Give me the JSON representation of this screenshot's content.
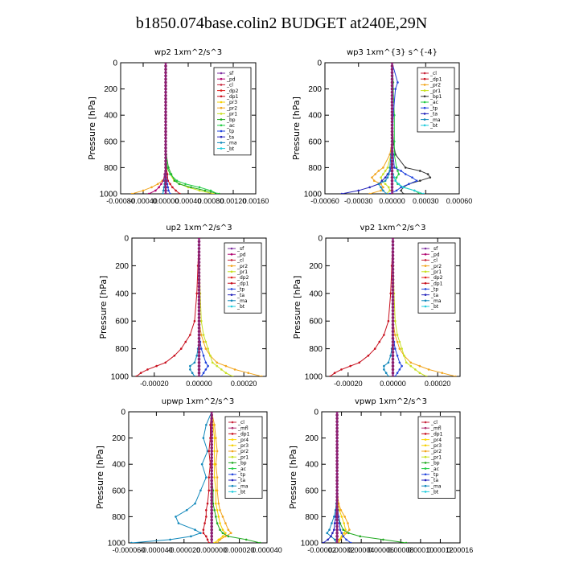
{
  "title": "b1850.074base.colin2  BUDGET at240E,29N",
  "ylabel": "Pressure [hPa]",
  "yticks": [
    0,
    200,
    400,
    600,
    800,
    1000
  ],
  "ylim": [
    1000,
    0
  ],
  "colors": {
    "_sf": "#7e2fa0",
    "_pd": "#b0006e",
    "_cl": "#c8263c",
    "_dp2": "#e0201e",
    "_dp1": "#c8101e",
    "_pr2": "#f2a51c",
    "_pr3": "#f5d000",
    "_pr4": "#ffd700",
    "_pr1": "#c8e020",
    "_bp": "#22aa22",
    "_ac": "#22cc44",
    "_tp": "#2244dd",
    "_ta": "#2222bb",
    "_ma": "#1188bb",
    "_bt": "#22ccdd",
    "_mfl": "#b03070"
  },
  "chart_data": [
    {
      "type": "line",
      "panel": "wp2",
      "title": "wp2  1xm^2/s^3",
      "xlim": [
        -0.0008,
        0.0016
      ],
      "xticks": [
        "-0.00080",
        "-0.00040",
        "0.00000",
        "0.00040",
        "0.00080",
        "0.00120",
        "0.00160"
      ],
      "legend": [
        "_sf",
        "_pd",
        "_cl",
        "_dp2",
        "_dp1",
        "_pr3",
        "_pr2",
        "_pr1",
        "_bp",
        "_ac",
        "_tp",
        "_ta",
        "_ma",
        "_bt"
      ],
      "levels": [
        0,
        200,
        400,
        600,
        700,
        800,
        850,
        900,
        925,
        950,
        975,
        1000
      ],
      "series": [
        {
          "name": "_pr2",
          "values": [
            0,
            0,
            0,
            0,
            0,
            1e-05,
            3e-05,
            -6e-05,
            -0.00014,
            -0.00025,
            -0.0004,
            -0.0006
          ]
        },
        {
          "name": "_pr1",
          "values": [
            0,
            0,
            0,
            0,
            0,
            2e-05,
            8e-05,
            0.00015,
            0.00025,
            0.0004,
            0.0006,
            0.00085
          ]
        },
        {
          "name": "_bp",
          "values": [
            0,
            0,
            0,
            0,
            1e-05,
            5e-05,
            0.0001,
            0.00016,
            0.00024,
            0.00045,
            0.0007,
            0.00095
          ]
        },
        {
          "name": "_ac",
          "values": [
            0,
            0,
            0,
            0,
            0,
            3e-05,
            8e-05,
            0.0002,
            0.00035,
            0.0006,
            0.0008,
            0.00092
          ]
        },
        {
          "name": "_pd",
          "values": [
            0,
            0,
            0,
            0,
            0,
            0,
            -2e-05,
            -4e-05,
            -8e-05,
            -0.00012,
            -0.00018,
            -0.0003
          ]
        },
        {
          "name": "_dp1",
          "values": [
            0,
            0,
            0,
            0,
            0,
            1e-05,
            3e-05,
            4e-05,
            8e-05,
            0.00012,
            0.00018,
            0.00025
          ]
        },
        {
          "name": "_tp",
          "values": [
            0,
            0,
            0,
            0,
            0,
            0,
            1e-05,
            2e-05,
            3e-05,
            4e-05,
            5e-05,
            8e-05
          ]
        },
        {
          "name": "_ma",
          "values": [
            0,
            0,
            0,
            0,
            0,
            0,
            -1e-05,
            -2e-05,
            -2e-05,
            -3e-05,
            -4e-05,
            -5e-05
          ]
        },
        {
          "name": "_sf",
          "values": [
            0,
            0,
            0,
            0,
            0,
            0,
            0,
            0,
            0,
            0,
            0,
            0
          ]
        }
      ]
    },
    {
      "type": "line",
      "panel": "wp3",
      "title": "wp3  1xm^{3} s^{-4}",
      "xlim": [
        -0.0006,
        0.0006
      ],
      "xticks": [
        "-0.00060",
        "-0.00030",
        "0.00000",
        "0.00030",
        "0.00060"
      ],
      "legend": [
        "_cl",
        "_dp1",
        "_pr2",
        "_pr1",
        "_bp1",
        "_ac",
        "_tp",
        "_ta",
        "_ma",
        "_bt"
      ],
      "levels": [
        0,
        150,
        200,
        400,
        600,
        700,
        800,
        825,
        850,
        875,
        900,
        925,
        950,
        975,
        1000
      ],
      "series": [
        {
          "name": "_pr2",
          "values": [
            0,
            0,
            0,
            0,
            0,
            -2e-05,
            -8e-05,
            -0.00012,
            -0.00015,
            -0.00018,
            -0.00016,
            -0.0001,
            -8e-05,
            -0.0001,
            -0.0002
          ]
        },
        {
          "name": "_pr1",
          "values": [
            0,
            0,
            0,
            0,
            0,
            -1e-05,
            -4e-05,
            -6e-05,
            -8e-05,
            -0.0001,
            -9e-05,
            -6e-05,
            -3e-05,
            -2e-05,
            -5e-05
          ]
        },
        {
          "name": "_bp1",
          "values": [
            0,
            0,
            0,
            0,
            1e-05,
            3e-05,
            0.00012,
            0.00025,
            0.00032,
            0.00034,
            0.00025,
            0.00015,
            0.0001,
            8e-05,
            0.0001
          ]
        },
        {
          "name": "_ac",
          "values": [
            0,
            1e-05,
            1e-05,
            2e-05,
            2e-05,
            2e-05,
            4e-05,
            5e-05,
            6e-05,
            4e-05,
            3e-05,
            5e-05,
            0.0001,
            0.0002,
            0.00025
          ]
        },
        {
          "name": "_tp",
          "values": [
            0,
            5e-05,
            3e-05,
            1e-05,
            0,
            1e-05,
            2e-05,
            8e-05,
            0.00012,
            0.00018,
            0.00022,
            0.00015,
            8e-05,
            4e-05,
            -2e-05
          ]
        },
        {
          "name": "_ta",
          "values": [
            0,
            0,
            0,
            0,
            0,
            0,
            -1e-05,
            -2e-05,
            -4e-05,
            -6e-05,
            -9e-05,
            -0.00012,
            -0.0002,
            -0.0003,
            -0.00045
          ]
        },
        {
          "name": "_ma",
          "values": [
            0,
            0,
            0,
            0,
            0,
            -1e-05,
            -2e-05,
            -2e-05,
            -3e-05,
            -4e-05,
            -6e-05,
            -0.00012,
            -0.0001,
            -8e-05,
            -5e-05
          ]
        },
        {
          "name": "_bt",
          "values": [
            0,
            0,
            0,
            0,
            0,
            0,
            0,
            0,
            1e-05,
            2e-05,
            3e-05,
            6e-05,
            0.0001,
            0.0002,
            0.00028
          ]
        },
        {
          "name": "_cl",
          "values": [
            0,
            0,
            0,
            0,
            0,
            0,
            0,
            0,
            0,
            0,
            0,
            0,
            0,
            0,
            0
          ]
        }
      ]
    },
    {
      "type": "line",
      "panel": "up2",
      "title": "up2  1xm^2/s^3",
      "xlim": [
        -0.0003,
        0.0003
      ],
      "xticks": [
        "-0.00020",
        "0.00000",
        "0.00020"
      ],
      "xtick_values": [
        -0.0002,
        0,
        0.0002
      ],
      "legend": [
        "_sf",
        "_pd",
        "_cl",
        "_pr2",
        "_pr1",
        "_dp2",
        "_dp1",
        "_tp",
        "_ta",
        "_ma",
        "_bt"
      ],
      "levels": [
        0,
        200,
        400,
        600,
        700,
        750,
        800,
        850,
        900,
        925,
        950,
        975,
        1000
      ],
      "series": [
        {
          "name": "_pr2",
          "values": [
            0,
            0,
            0,
            0,
            1e-05,
            2e-05,
            3e-05,
            5e-05,
            8e-05,
            0.00012,
            0.00016,
            0.00022,
            0.00028
          ]
        },
        {
          "name": "_pr1",
          "values": [
            0,
            2e-06,
            5e-06,
            1e-05,
            2e-05,
            3e-05,
            4e-05,
            5e-05,
            6e-05,
            8e-05,
            0.0001,
            0.00012,
            0.00015
          ]
        },
        {
          "name": "_dp1",
          "values": [
            0,
            -5e-06,
            -1e-05,
            -2e-05,
            -4e-05,
            -6e-05,
            -8e-05,
            -0.00011,
            -0.00015,
            -0.00019,
            -0.00023,
            -0.00026,
            -0.00028
          ]
        },
        {
          "name": "_tp",
          "values": [
            0,
            0,
            0,
            0,
            0,
            5e-06,
            1e-05,
            2e-05,
            3e-05,
            4e-05,
            3e-05,
            2e-05,
            1e-05
          ]
        },
        {
          "name": "_ma",
          "values": [
            0,
            0,
            0,
            0,
            0,
            0,
            -5e-06,
            -1e-05,
            -2e-05,
            -4e-05,
            -4e-05,
            -3e-05,
            -2e-05
          ]
        },
        {
          "name": "_sf",
          "values": [
            0,
            0,
            0,
            0,
            0,
            0,
            0,
            0,
            0,
            0,
            0,
            0,
            0
          ]
        }
      ]
    },
    {
      "type": "line",
      "panel": "vp2",
      "title": "vp2  1xm^2/s^3",
      "xlim": [
        -0.0003,
        0.0003
      ],
      "xticks": [
        "-0.00020",
        "0.00000",
        "0.00020"
      ],
      "xtick_values": [
        -0.0002,
        0,
        0.0002
      ],
      "legend": [
        "_sf",
        "_pd",
        "_cl",
        "_pr2",
        "_pr1",
        "_dp2",
        "_dp1",
        "_tp",
        "_ta",
        "_ma",
        "_bt"
      ],
      "levels": [
        0,
        200,
        400,
        600,
        700,
        750,
        800,
        850,
        900,
        925,
        950,
        975,
        1000
      ],
      "series": [
        {
          "name": "_pr2",
          "values": [
            0,
            0,
            0,
            0,
            1e-05,
            2e-05,
            3e-05,
            5e-05,
            8e-05,
            0.00012,
            0.00016,
            0.00022,
            0.00028
          ]
        },
        {
          "name": "_pr1",
          "values": [
            0,
            2e-06,
            5e-06,
            1e-05,
            2e-05,
            3e-05,
            4e-05,
            5e-05,
            6e-05,
            8e-05,
            0.0001,
            0.00012,
            0.00015
          ]
        },
        {
          "name": "_dp1",
          "values": [
            0,
            -5e-06,
            -1e-05,
            -2e-05,
            -4e-05,
            -6e-05,
            -8e-05,
            -0.00011,
            -0.00015,
            -0.00019,
            -0.00023,
            -0.00026,
            -0.00028
          ]
        },
        {
          "name": "_tp",
          "values": [
            0,
            0,
            0,
            0,
            0,
            5e-06,
            1e-05,
            2e-05,
            3e-05,
            4e-05,
            3e-05,
            2e-05,
            1e-05
          ]
        },
        {
          "name": "_ma",
          "values": [
            0,
            0,
            0,
            0,
            0,
            0,
            -5e-06,
            -1e-05,
            -2e-05,
            -4e-05,
            -4e-05,
            -3e-05,
            -2e-05
          ]
        },
        {
          "name": "_sf",
          "values": [
            0,
            0,
            0,
            0,
            0,
            0,
            0,
            0,
            0,
            0,
            0,
            0,
            0
          ]
        }
      ]
    },
    {
      "type": "line",
      "panel": "upwp",
      "title": "upwp  1xm^2/s^3",
      "xlim": [
        -6e-05,
        4e-05
      ],
      "xticks": [
        "-0.000060",
        "-0.000040",
        "-0.000020",
        "0.000000",
        "0.000020",
        "0.000040"
      ],
      "legend": [
        "_cl",
        "_mfl",
        "_dp1",
        "_pr4",
        "_pr3",
        "_pr2",
        "_pr1",
        "_bp",
        "_ac",
        "_tp",
        "_ta",
        "_ma",
        "_bt"
      ],
      "levels": [
        0,
        100,
        200,
        300,
        400,
        500,
        600,
        700,
        750,
        800,
        850,
        900,
        925,
        950,
        975,
        1000
      ],
      "series": [
        {
          "name": "_ma",
          "values": [
            0,
            -4e-06,
            -6e-06,
            -3e-06,
            -7e-06,
            -4e-06,
            -8e-06,
            -1.2e-05,
            -1.8e-05,
            -2.6e-05,
            -2.4e-05,
            -1.2e-05,
            -8e-06,
            -1.5e-05,
            -3e-05,
            -5.8e-05
          ]
        },
        {
          "name": "_pr2",
          "values": [
            0,
            2e-06,
            3e-06,
            4e-06,
            3e-06,
            4e-06,
            4e-06,
            5e-06,
            6e-06,
            8e-06,
            1e-05,
            1.2e-05,
            1.4e-05,
            1e-05,
            6e-06,
            4e-06
          ]
        },
        {
          "name": "_pr3",
          "values": [
            0,
            1e-06,
            2e-06,
            2e-06,
            2e-06,
            2e-06,
            3e-06,
            3e-06,
            4e-06,
            5e-06,
            6e-06,
            8e-06,
            1e-05,
            8e-06,
            5e-06,
            2e-06
          ]
        },
        {
          "name": "_dp1",
          "values": [
            0,
            -1e-06,
            -1e-06,
            -2e-06,
            -1e-06,
            -2e-06,
            -2e-06,
            -3e-06,
            -4e-06,
            -4e-06,
            -5e-06,
            -6e-06,
            -6e-06,
            -4e-06,
            -3e-06,
            -2e-06
          ]
        },
        {
          "name": "_bp",
          "values": [
            0,
            0,
            0,
            0,
            0,
            0,
            1e-06,
            1e-06,
            2e-06,
            3e-06,
            4e-06,
            6e-06,
            8e-06,
            1.2e-05,
            2.5e-05,
            3.5e-05
          ]
        },
        {
          "name": "_cl",
          "values": [
            0,
            0,
            0,
            0,
            0,
            0,
            0,
            0,
            0,
            0,
            0,
            0,
            0,
            0,
            0,
            0
          ]
        }
      ]
    },
    {
      "type": "line",
      "panel": "vpwp",
      "title": "vpwp  1xm^2/s^3",
      "xlim": [
        -2e-05,
        0.00016
      ],
      "xticks": [
        "-0.00002",
        "0.00002",
        "0.00004",
        "0.00006",
        "0.00008",
        "0.00010",
        "0.00012",
        "0.00016"
      ],
      "legend": [
        "_cl",
        "_mfl",
        "_dp1",
        "_pr4",
        "_pr3",
        "_pr2",
        "_pr1",
        "_bp",
        "_ac",
        "_tp",
        "_ta",
        "_ma",
        "_bt"
      ],
      "levels": [
        0,
        200,
        400,
        600,
        700,
        750,
        800,
        850,
        900,
        925,
        950,
        975,
        1000
      ],
      "series": [
        {
          "name": "_pr2",
          "values": [
            0,
            0,
            0,
            0,
            2e-06,
            5e-06,
            1e-05,
            1.4e-05,
            1.6e-05,
            1.2e-05,
            8e-06,
            4e-06,
            2e-06
          ]
        },
        {
          "name": "_pr3",
          "values": [
            0,
            0,
            0,
            0,
            1e-06,
            3e-06,
            6e-06,
            9e-06,
            1.1e-05,
            9e-06,
            6e-06,
            3e-06,
            1e-06
          ]
        },
        {
          "name": "_ma",
          "values": [
            0,
            0,
            0,
            0,
            -1e-06,
            -2e-06,
            -4e-06,
            -7e-06,
            -1e-05,
            -1.3e-05,
            -8e-06,
            -3e-06,
            -1e-06
          ]
        },
        {
          "name": "_bp",
          "values": [
            0,
            0,
            0,
            0,
            0,
            1e-06,
            2e-06,
            4e-06,
            8e-06,
            1.5e-05,
            3e-05,
            6e-05,
            9e-05
          ]
        },
        {
          "name": "_tp",
          "values": [
            0,
            0,
            0,
            0,
            0,
            1e-06,
            2e-06,
            3e-06,
            4e-06,
            6e-06,
            8e-06,
            1.2e-05,
            1.8e-05
          ]
        },
        {
          "name": "_ta",
          "values": [
            0,
            0,
            0,
            0,
            0,
            -1e-06,
            -2e-06,
            -3e-06,
            -4e-06,
            -6e-06,
            -8e-06,
            -1.2e-05,
            -1.8e-05
          ]
        },
        {
          "name": "_cl",
          "values": [
            0,
            0,
            0,
            0,
            0,
            0,
            0,
            0,
            0,
            0,
            0,
            0,
            0
          ]
        }
      ]
    }
  ]
}
